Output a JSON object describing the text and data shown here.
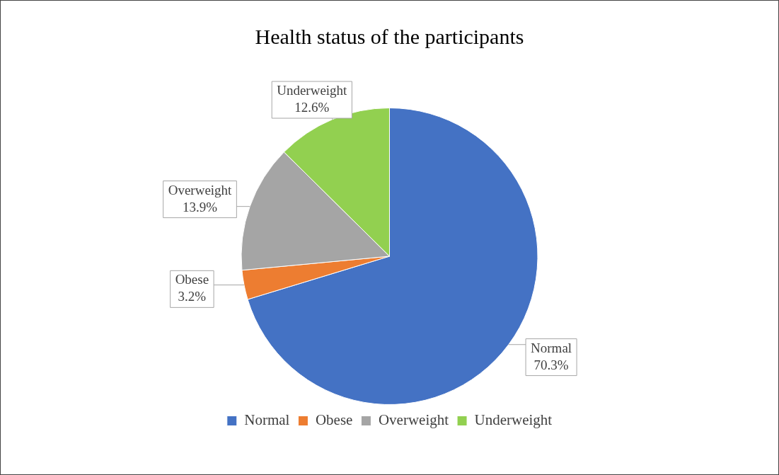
{
  "chart_data": {
    "type": "pie",
    "title": "Health status of the participants",
    "categories": [
      "Normal",
      "Obese",
      "Overweight",
      "Underweight"
    ],
    "values": [
      70.3,
      3.2,
      13.9,
      12.6
    ],
    "colors": [
      "#4472c4",
      "#ed7d31",
      "#a5a5a5",
      "#92d050"
    ],
    "value_labels": [
      "70.3%",
      "3.2%",
      "13.9%",
      "12.6%"
    ],
    "legend": "bottom"
  }
}
